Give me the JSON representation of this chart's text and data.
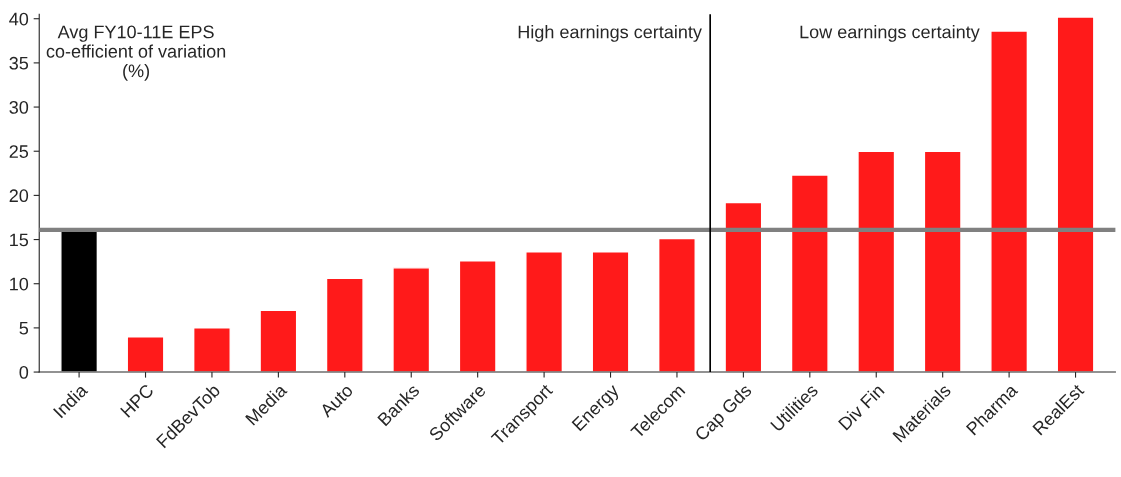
{
  "chart_data": {
    "type": "bar",
    "categories": [
      "India",
      "HPC",
      "FdBevTob",
      "Media",
      "Auto",
      "Banks",
      "Software",
      "Transport",
      "Energy",
      "Telecom",
      "Cap Gds",
      "Utilities",
      "Div Fin",
      "Materials",
      "Pharma",
      "RealEst"
    ],
    "values": [
      16.2,
      4.0,
      5.0,
      7.0,
      10.6,
      11.8,
      12.6,
      13.6,
      13.6,
      15.1,
      19.2,
      22.3,
      25.0,
      25.0,
      38.6,
      40.2
    ],
    "colors": [
      "#000000",
      "#ff1a1a",
      "#ff1a1a",
      "#ff1a1a",
      "#ff1a1a",
      "#ff1a1a",
      "#ff1a1a",
      "#ff1a1a",
      "#ff1a1a",
      "#ff1a1a",
      "#ff1a1a",
      "#ff1a1a",
      "#ff1a1a",
      "#ff1a1a",
      "#ff1a1a",
      "#ff1a1a"
    ],
    "ylim": [
      0,
      40.5
    ],
    "yticks": [
      0,
      5,
      10,
      15,
      20,
      25,
      30,
      35,
      40
    ],
    "grid": false,
    "legend": false,
    "ref_lines": [
      {
        "axis": "y",
        "value": 16.1,
        "color": "#808080",
        "line_style": "solid"
      }
    ],
    "annotations": [
      "Avg FY10-11E EPS\nco-efficient of variation\n(%)",
      "High earnings certainty",
      "Low earnings certainty"
    ]
  }
}
